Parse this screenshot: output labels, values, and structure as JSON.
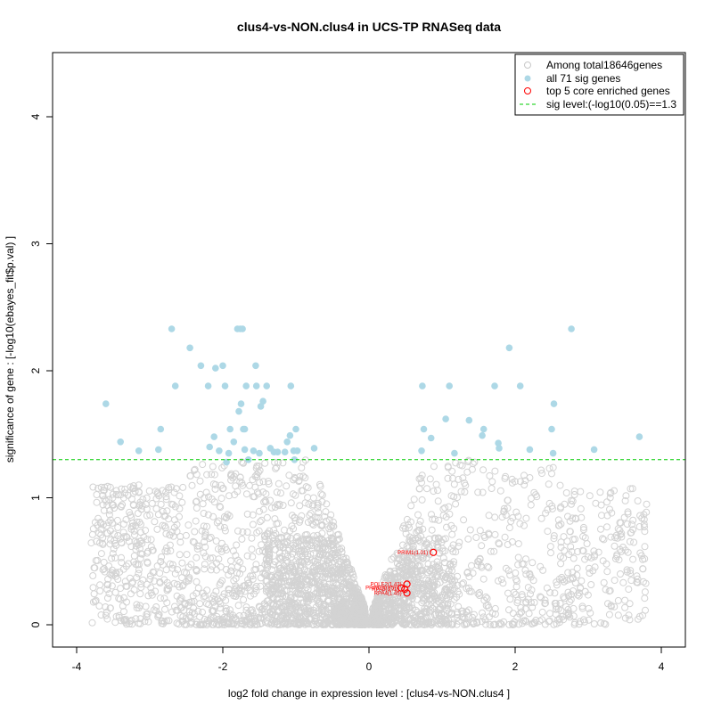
{
  "chart_data": {
    "type": "scatter",
    "title": "clus4-vs-NON.clus4 in UCS-TP RNASeq data",
    "xlabel": "log2 fold change in expression level : [clus4-vs-NON.clus4 ]",
    "ylabel": "significance of gene : [-log10(ebayes_fit$p.val) ]",
    "xlim": [
      -4.3,
      4.3
    ],
    "ylim": [
      -0.18,
      4.5
    ],
    "x_ticks": [
      "-4",
      "-2",
      "0",
      "2",
      "4"
    ],
    "y_ticks": [
      "0",
      "1",
      "2",
      "3",
      "4"
    ],
    "x_tick_values": [
      -4,
      -2,
      0,
      2,
      4
    ],
    "y_tick_values": [
      0,
      1,
      2,
      3,
      4
    ],
    "sig_threshold": 1.3,
    "colors": {
      "background_points": "#d3d3d3",
      "sig_points": "#add8e6",
      "core_points": "#ff0000",
      "threshold_line": "#00cc00"
    },
    "legend": {
      "position": "top-right",
      "entries": [
        {
          "label": "Among total18646genes",
          "marker": "open-circle-grey"
        },
        {
          "label": "all 71 sig genes",
          "marker": "filled-circle-lightblue"
        },
        {
          "label": "top 5 core enriched genes",
          "marker": "open-circle-red"
        },
        {
          "label": "sig level:(-log10(0.05)==1.3",
          "marker": "dashed-line-green"
        }
      ]
    },
    "background_cloud": {
      "description_count": "18646",
      "max_abs_x": 3.8,
      "max_y": 1.3
    },
    "sig_genes": [
      [
        -3.6,
        1.74
      ],
      [
        -3.4,
        1.44
      ],
      [
        -3.15,
        1.37
      ],
      [
        -2.88,
        1.38
      ],
      [
        -2.85,
        1.54
      ],
      [
        -2.7,
        2.33
      ],
      [
        -2.65,
        1.88
      ],
      [
        -2.45,
        2.18
      ],
      [
        -2.3,
        2.04
      ],
      [
        -2.2,
        1.88
      ],
      [
        -2.18,
        1.4
      ],
      [
        -2.12,
        1.48
      ],
      [
        -2.1,
        2.02
      ],
      [
        -2.05,
        1.37
      ],
      [
        -2.0,
        2.04
      ],
      [
        -1.97,
        1.88
      ],
      [
        -1.95,
        1.28
      ],
      [
        -1.92,
        1.35
      ],
      [
        -1.9,
        1.54
      ],
      [
        -1.85,
        1.44
      ],
      [
        -1.8,
        2.33
      ],
      [
        -1.78,
        1.68
      ],
      [
        -1.76,
        2.33
      ],
      [
        -1.75,
        1.74
      ],
      [
        -1.73,
        2.33
      ],
      [
        -1.72,
        1.54
      ],
      [
        -1.7,
        1.54
      ],
      [
        -1.7,
        1.38
      ],
      [
        -1.68,
        1.88
      ],
      [
        -1.65,
        1.3
      ],
      [
        -1.58,
        1.37
      ],
      [
        -1.55,
        2.04
      ],
      [
        -1.54,
        1.88
      ],
      [
        -1.5,
        1.35
      ],
      [
        -1.48,
        1.72
      ],
      [
        -1.45,
        1.76
      ],
      [
        -1.4,
        1.88
      ],
      [
        -1.35,
        1.39
      ],
      [
        -1.3,
        1.36
      ],
      [
        -1.25,
        1.36
      ],
      [
        -1.15,
        1.36
      ],
      [
        -1.12,
        1.44
      ],
      [
        -1.08,
        1.49
      ],
      [
        -1.07,
        1.88
      ],
      [
        -1.03,
        1.37
      ],
      [
        -1.02,
        1.3
      ],
      [
        -1.0,
        1.54
      ],
      [
        -0.98,
        1.37
      ],
      [
        -0.75,
        1.39
      ],
      [
        0.72,
        1.37
      ],
      [
        0.73,
        1.88
      ],
      [
        0.75,
        1.54
      ],
      [
        0.85,
        1.47
      ],
      [
        1.05,
        1.62
      ],
      [
        1.1,
        1.88
      ],
      [
        1.17,
        1.35
      ],
      [
        1.37,
        1.61
      ],
      [
        1.55,
        1.49
      ],
      [
        1.57,
        1.54
      ],
      [
        1.72,
        1.88
      ],
      [
        1.77,
        1.43
      ],
      [
        1.78,
        1.39
      ],
      [
        1.92,
        2.18
      ],
      [
        2.07,
        1.88
      ],
      [
        2.2,
        1.38
      ],
      [
        2.5,
        1.54
      ],
      [
        2.52,
        1.35
      ],
      [
        2.53,
        1.74
      ],
      [
        2.77,
        2.33
      ],
      [
        3.08,
        1.38
      ],
      [
        3.7,
        1.48
      ]
    ],
    "core_genes": [
      {
        "label": "PRIM1(1.01)",
        "x": 0.88,
        "y": 0.57
      },
      {
        "label": "POLE2(1.42)",
        "x": 0.52,
        "y": 0.32
      },
      {
        "label": "PRIM2(0.85)",
        "x": 0.44,
        "y": 0.29
      },
      {
        "label": "RPA3(1.72)",
        "x": 0.49,
        "y": 0.28
      },
      {
        "label": "RPA4(1.45)",
        "x": 0.52,
        "y": 0.25
      }
    ]
  }
}
